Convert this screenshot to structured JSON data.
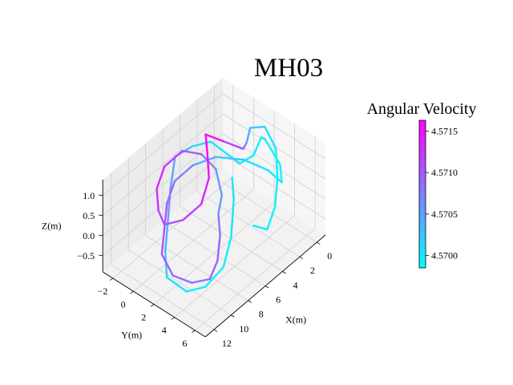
{
  "chart_data": {
    "type": "line3d",
    "title": "MH03",
    "xlabel": "X(m)",
    "ylabel": "Y(m)",
    "zlabel": "Z(m)",
    "xlim": [
      -1,
      13
    ],
    "ylim": [
      -3,
      7
    ],
    "zlim": [
      -0.9,
      1.4
    ],
    "x_ticks": [
      "0",
      "2",
      "4",
      "6",
      "8",
      "10",
      "12"
    ],
    "y_ticks": [
      "−2",
      "0",
      "2",
      "4",
      "6"
    ],
    "z_ticks": [
      "−0.5",
      "0.0",
      "0.5",
      "1.0"
    ],
    "grid": true,
    "colorbar": {
      "label": "Angular Velocity",
      "colormap": "cool",
      "low_color": "#00ffff",
      "high_color": "#ff00ff",
      "min": 4.56985,
      "max": 4.57163,
      "ticks": [
        "4.5700",
        "4.5705",
        "4.5710",
        "4.5715"
      ]
    },
    "trajectory": [
      {
        "x": 4.5,
        "y": 2.5,
        "z": 0.8,
        "v": 4.57
      },
      {
        "x": 5.5,
        "y": 3.5,
        "z": 0.6,
        "v": 4.5701
      },
      {
        "x": 7.0,
        "y": 4.5,
        "z": 0.1,
        "v": 4.57
      },
      {
        "x": 8.5,
        "y": 5.0,
        "z": -0.3,
        "v": 4.57
      },
      {
        "x": 10.0,
        "y": 4.5,
        "z": -0.6,
        "v": 4.5699
      },
      {
        "x": 11.0,
        "y": 3.5,
        "z": -0.7,
        "v": 4.57
      },
      {
        "x": 11.5,
        "y": 2.0,
        "z": -0.5,
        "v": 4.5701
      },
      {
        "x": 10.5,
        "y": 1.0,
        "z": -0.2,
        "v": 4.5703
      },
      {
        "x": 9.0,
        "y": 0.0,
        "z": 0.1,
        "v": 4.5705
      },
      {
        "x": 7.5,
        "y": -1.0,
        "z": 0.5,
        "v": 4.5706
      },
      {
        "x": 6.0,
        "y": -1.8,
        "z": 0.9,
        "v": 4.5704
      },
      {
        "x": 5.0,
        "y": -1.0,
        "z": 1.1,
        "v": 4.5702
      },
      {
        "x": 4.0,
        "y": 0.0,
        "z": 1.2,
        "v": 4.57
      },
      {
        "x": 3.5,
        "y": 1.0,
        "z": 1.0,
        "v": 4.57
      },
      {
        "x": 3.0,
        "y": 2.0,
        "z": 0.8,
        "v": 4.5701
      },
      {
        "x": 2.0,
        "y": 2.5,
        "z": 0.9,
        "v": 4.57
      },
      {
        "x": 0.5,
        "y": 2.0,
        "z": 1.0,
        "v": 4.5699
      },
      {
        "x": -0.5,
        "y": 1.5,
        "z": 0.7,
        "v": 4.57
      },
      {
        "x": -0.5,
        "y": 3.0,
        "z": 0.3,
        "v": 4.5699
      },
      {
        "x": 0.5,
        "y": 4.0,
        "z": 0.2,
        "v": 4.57
      },
      {
        "x": 1.5,
        "y": 3.5,
        "z": 0.6,
        "v": 4.57
      },
      {
        "x": 2.5,
        "y": 2.0,
        "z": 0.8,
        "v": 4.5701
      },
      {
        "x": 4.0,
        "y": 0.5,
        "z": 0.9,
        "v": 4.5703
      },
      {
        "x": 5.5,
        "y": -0.5,
        "z": 0.8,
        "v": 4.5706
      },
      {
        "x": 7.0,
        "y": -1.0,
        "z": 0.6,
        "v": 4.5708
      },
      {
        "x": 8.5,
        "y": -0.5,
        "z": 0.4,
        "v": 4.571
      },
      {
        "x": 10.0,
        "y": 0.5,
        "z": 0.2,
        "v": 4.5711
      },
      {
        "x": 11.5,
        "y": 1.5,
        "z": 0.0,
        "v": 4.571
      },
      {
        "x": 12.0,
        "y": 3.0,
        "z": -0.2,
        "v": 4.5709
      },
      {
        "x": 11.0,
        "y": 4.0,
        "z": -0.4,
        "v": 4.5708
      },
      {
        "x": 9.5,
        "y": 4.5,
        "z": -0.5,
        "v": 4.5709
      },
      {
        "x": 8.0,
        "y": 4.0,
        "z": -0.4,
        "v": 4.571
      },
      {
        "x": 6.5,
        "y": 3.0,
        "z": -0.2,
        "v": 4.5709
      },
      {
        "x": 5.5,
        "y": 2.0,
        "z": 0.0,
        "v": 4.5707
      },
      {
        "x": 4.5,
        "y": 1.5,
        "z": 0.2,
        "v": 4.5705
      },
      {
        "x": 4.0,
        "y": 0.5,
        "z": 0.6,
        "v": 4.5706
      },
      {
        "x": 4.5,
        "y": -0.5,
        "z": 0.9,
        "v": 4.5708
      },
      {
        "x": 5.5,
        "y": -1.5,
        "z": 1.0,
        "v": 4.5711
      },
      {
        "x": 7.0,
        "y": -2.0,
        "z": 0.8,
        "v": 4.5713
      },
      {
        "x": 8.5,
        "y": -1.5,
        "z": 0.6,
        "v": 4.5714
      },
      {
        "x": 9.5,
        "y": -0.5,
        "z": 0.4,
        "v": 4.5712
      },
      {
        "x": 10.0,
        "y": 0.5,
        "z": 0.3,
        "v": 4.571
      },
      {
        "x": 9.0,
        "y": 1.5,
        "z": 0.4,
        "v": 4.5711
      },
      {
        "x": 7.5,
        "y": 2.0,
        "z": 0.6,
        "v": 4.5713
      },
      {
        "x": 6.0,
        "y": 1.5,
        "z": 0.9,
        "v": 4.5715
      },
      {
        "x": 5.0,
        "y": 0.5,
        "z": 1.2,
        "v": 4.5716
      },
      {
        "x": 4.0,
        "y": -0.5,
        "z": 1.3,
        "v": 4.5716
      },
      {
        "x": 3.0,
        "y": 0.5,
        "z": 1.1,
        "v": 4.5714
      },
      {
        "x": 2.0,
        "y": 1.5,
        "z": 0.9,
        "v": 4.571
      },
      {
        "x": 1.0,
        "y": 1.0,
        "z": 0.8,
        "v": 4.5706
      },
      {
        "x": 0.0,
        "y": 0.5,
        "z": 0.9,
        "v": 4.5703
      },
      {
        "x": -0.5,
        "y": 1.5,
        "z": 1.0,
        "v": 4.5701
      },
      {
        "x": 0.0,
        "y": 3.0,
        "z": 0.8,
        "v": 4.57
      },
      {
        "x": 1.0,
        "y": 4.0,
        "z": 0.4,
        "v": 4.5699
      },
      {
        "x": 2.5,
        "y": 5.0,
        "z": 0.1,
        "v": 4.57
      },
      {
        "x": 4.0,
        "y": 5.5,
        "z": -0.1,
        "v": 4.5699
      },
      {
        "x": 5.0,
        "y": 5.0,
        "z": 0.1,
        "v": 4.57
      }
    ]
  }
}
